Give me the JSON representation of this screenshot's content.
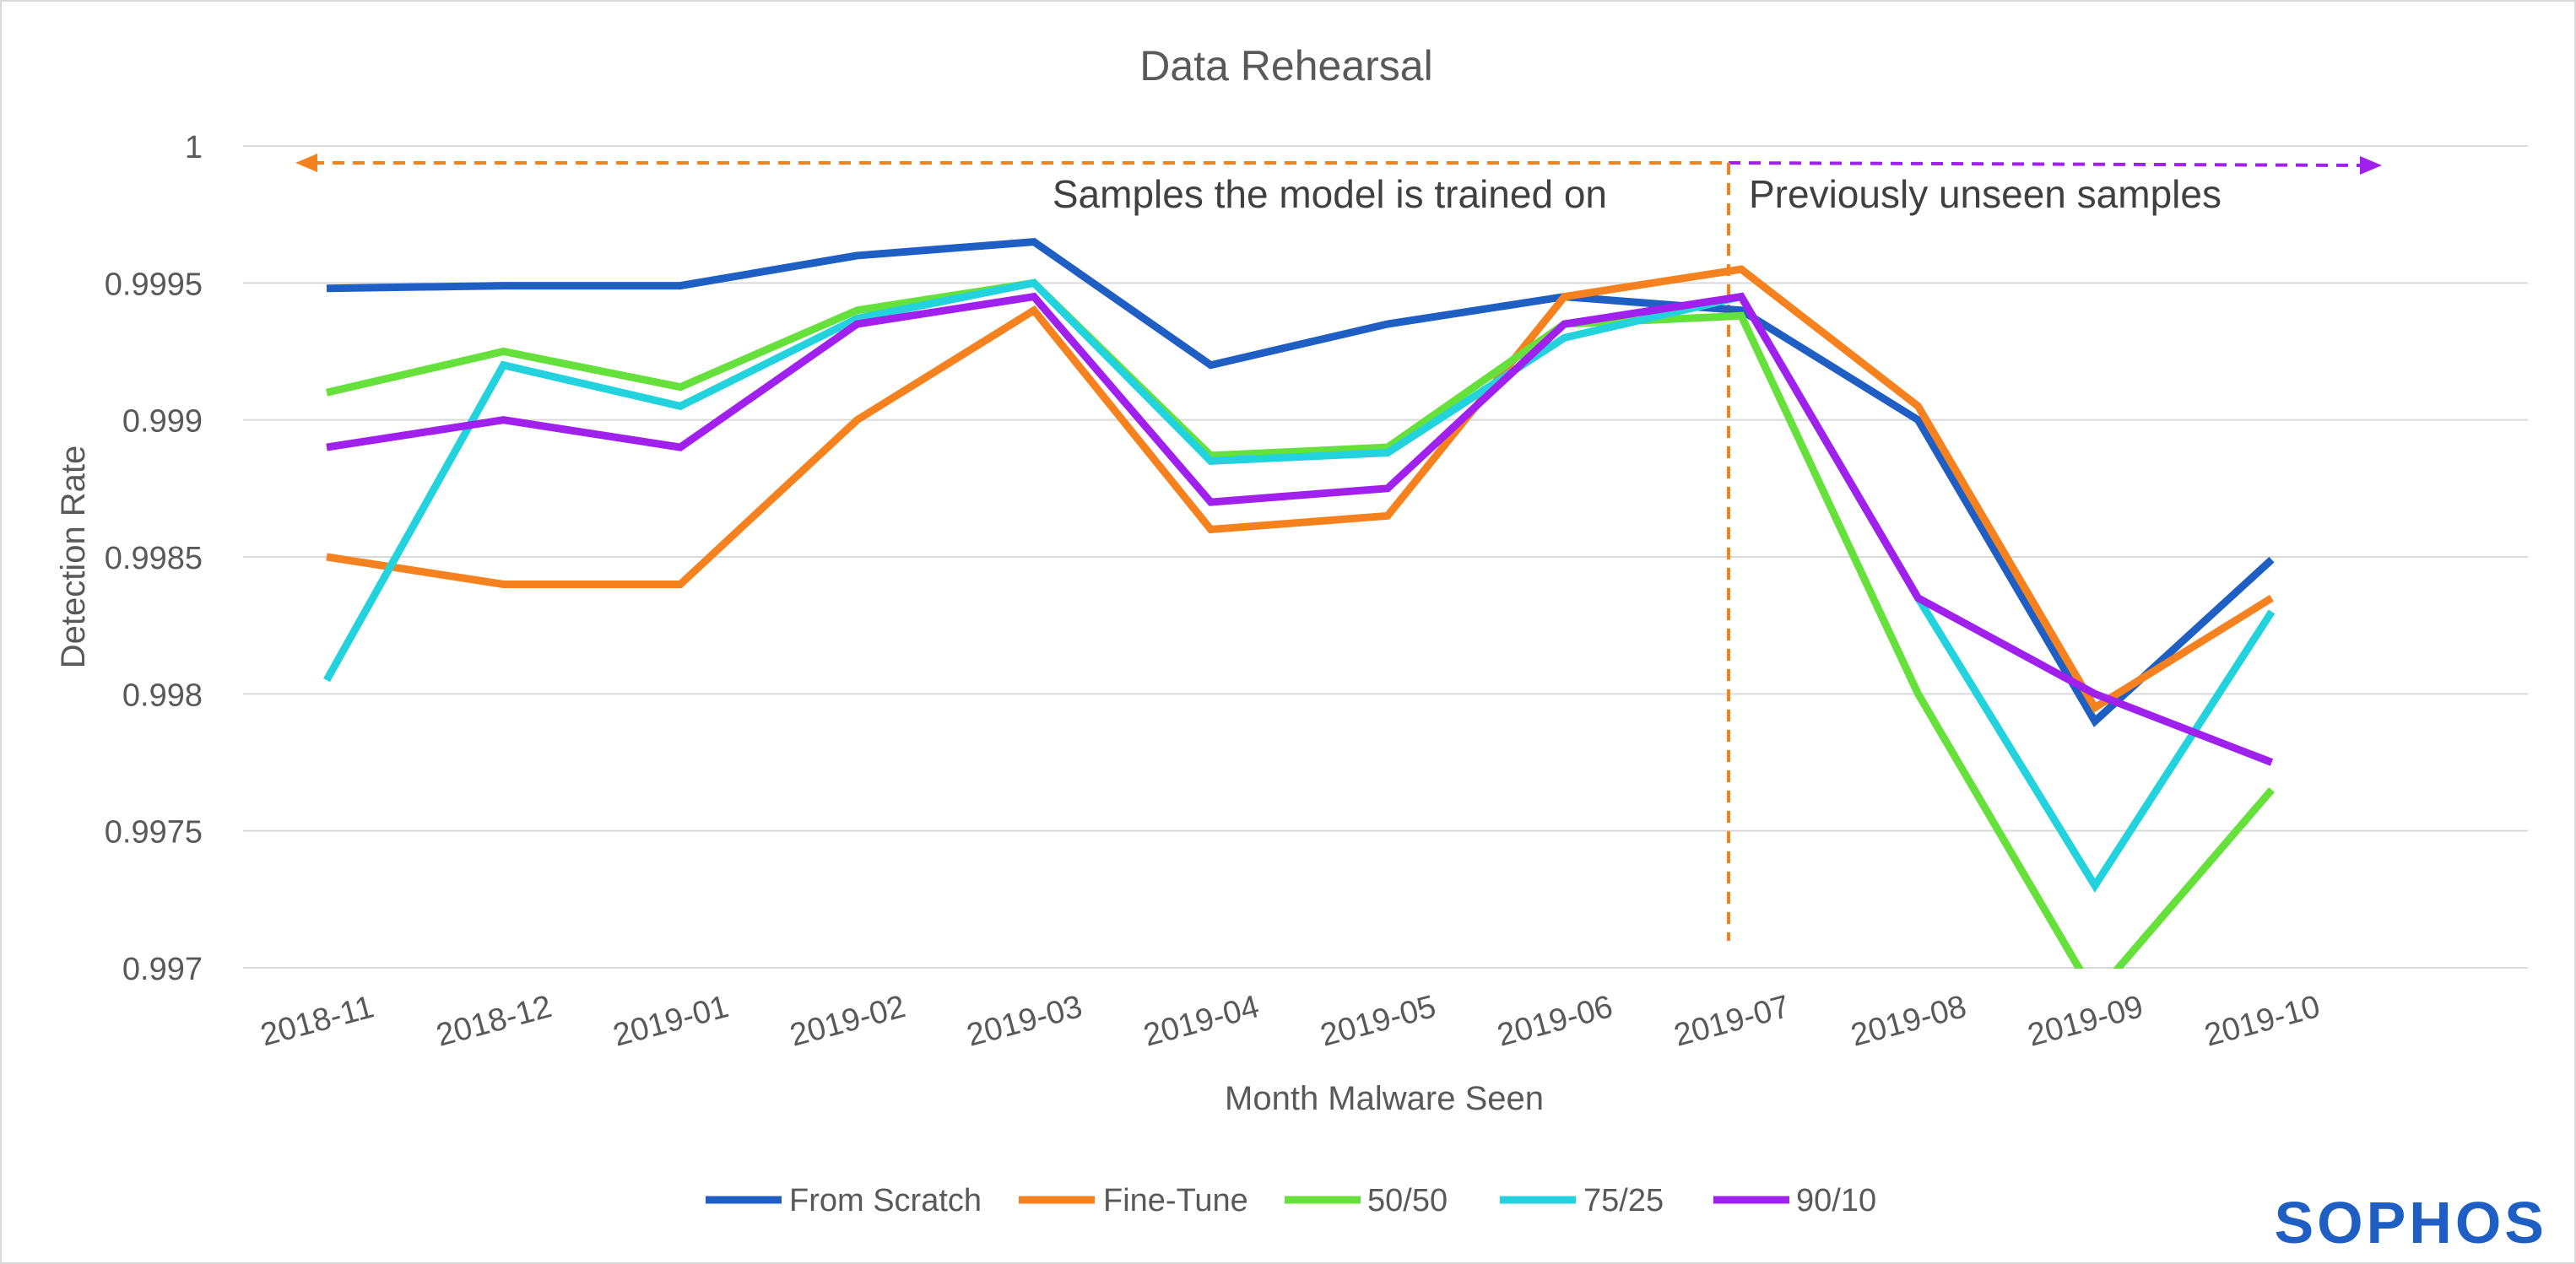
{
  "chart_data": {
    "type": "line",
    "title": "Data Rehearsal",
    "xlabel": "Month Malware Seen",
    "ylabel": "Detection Rate",
    "ylim": [
      0.997,
      1.0
    ],
    "yticks": [
      1,
      0.9995,
      0.999,
      0.9985,
      0.998,
      0.9975,
      0.997
    ],
    "ytick_labels": [
      "1",
      "0.9995",
      "0.999",
      "0.9985",
      "0.998",
      "0.9975",
      "0.997"
    ],
    "categories": [
      "2018-11",
      "2018-12",
      "2019-01",
      "2019-02",
      "2019-03",
      "2019-04",
      "2019-05",
      "2019-06",
      "2019-07",
      "2019-08",
      "2019-09",
      "2019-10"
    ],
    "grid": true,
    "legend_position": "bottom",
    "series": [
      {
        "name": "From Scratch",
        "color": "#1f5fc4",
        "values": [
          0.99948,
          0.99949,
          0.99949,
          0.9996,
          0.99965,
          0.9992,
          0.99935,
          0.99945,
          0.9994,
          0.999,
          0.9979,
          0.99849
        ]
      },
      {
        "name": "Fine-Tune",
        "color": "#f5821f",
        "values": [
          0.9985,
          0.9984,
          0.9984,
          0.999,
          0.9994,
          0.9986,
          0.99865,
          0.99945,
          0.99955,
          0.99905,
          0.99795,
          0.99835
        ]
      },
      {
        "name": "50/50",
        "color": "#66e03a",
        "values": [
          0.9991,
          0.99925,
          0.99912,
          0.9994,
          0.9995,
          0.99887,
          0.9989,
          0.99935,
          0.99938,
          0.998,
          0.9969,
          0.99765
        ]
      },
      {
        "name": "75/25",
        "color": "#22d3dd",
        "values": [
          0.99805,
          0.9992,
          0.99905,
          0.99937,
          0.9995,
          0.99885,
          0.99888,
          0.9993,
          0.99945,
          0.99835,
          0.9973,
          0.9983
        ]
      },
      {
        "name": "90/10",
        "color": "#a020ee",
        "values": [
          0.9989,
          0.999,
          0.9989,
          0.99935,
          0.99945,
          0.9987,
          0.99875,
          0.99935,
          0.99945,
          0.99835,
          0.998,
          0.99775
        ]
      }
    ],
    "annotations": {
      "trained_label": "Samples the model is trained on",
      "unseen_label": "Previously unseen samples",
      "trained_color": "#f5821f",
      "unseen_color": "#a020ee",
      "divider_at": "2019-07"
    }
  },
  "logo": {
    "text": "SOPHOS",
    "color": "#1f5fc4"
  }
}
